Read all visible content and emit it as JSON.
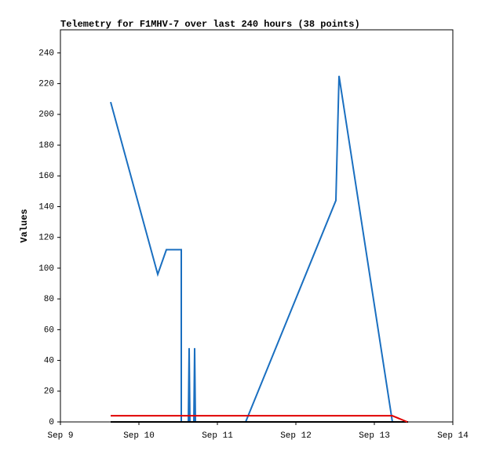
{
  "chart_data": {
    "type": "line",
    "title": "Telemetry for F1MHV-7 over last 240 hours (38 points)",
    "y_label": "Values",
    "xlim": [
      9,
      14
    ],
    "xticks": [
      {
        "value": 9,
        "label": "Sep 9"
      },
      {
        "value": 10,
        "label": "Sep 10"
      },
      {
        "value": 11,
        "label": "Sep 11"
      },
      {
        "value": 12,
        "label": "Sep 12"
      },
      {
        "value": 13,
        "label": "Sep 13"
      },
      {
        "value": 14,
        "label": "Sep 14"
      }
    ],
    "ylim": [
      0,
      255
    ],
    "yticks": [
      0,
      20,
      40,
      60,
      80,
      100,
      120,
      140,
      160,
      180,
      200,
      220,
      240
    ],
    "series": [
      {
        "color": "#1a6fc0",
        "x": [
          9.64,
          10.24,
          10.35,
          10.54,
          10.54,
          10.63,
          10.64,
          10.65,
          10.7,
          10.71,
          10.72,
          11.36,
          12.51,
          12.53,
          12.55,
          13.23
        ],
        "values": [
          208,
          96,
          112,
          112,
          0,
          0,
          48,
          0,
          0,
          48,
          0,
          0,
          144,
          185,
          225,
          0
        ]
      },
      {
        "color": "#000000",
        "x": [
          9.64,
          13.43
        ],
        "values": [
          0,
          0
        ]
      },
      {
        "color": "#e00000",
        "x": [
          9.64,
          13.23,
          13.42
        ],
        "values": [
          4,
          4,
          0
        ]
      }
    ]
  }
}
